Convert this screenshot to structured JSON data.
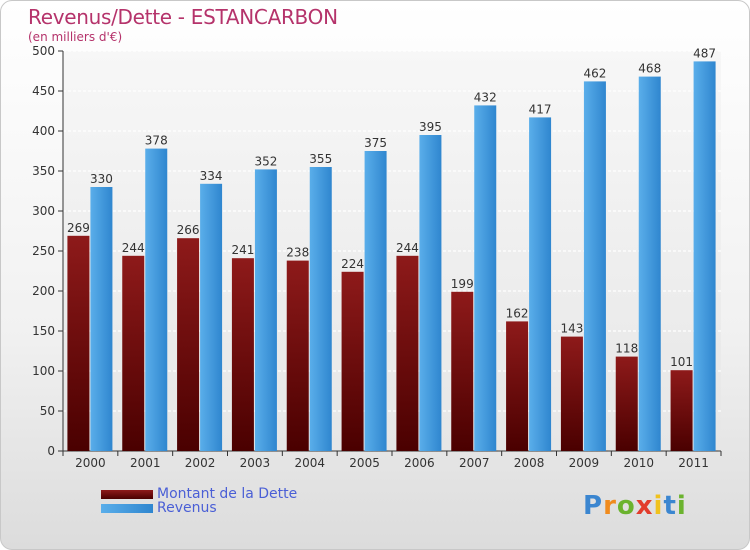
{
  "chart_data": {
    "type": "bar",
    "title": "Revenus/Dette - ESTANCARBON",
    "subtitle": "(en milliers d'€)",
    "categories": [
      "2000",
      "2001",
      "2002",
      "2003",
      "2004",
      "2005",
      "2006",
      "2007",
      "2008",
      "2009",
      "2010",
      "2011"
    ],
    "series": [
      {
        "name": "Montant de la Dette",
        "color": "#6b0a0a",
        "values": [
          269,
          244,
          266,
          241,
          238,
          224,
          244,
          199,
          162,
          143,
          118,
          101
        ]
      },
      {
        "name": "Revenus",
        "color": "#3d97db",
        "values": [
          330,
          378,
          334,
          352,
          355,
          375,
          395,
          432,
          417,
          462,
          468,
          487
        ]
      }
    ],
    "ylim": [
      0,
      500
    ],
    "yticks": [
      0,
      50,
      100,
      150,
      200,
      250,
      300,
      350,
      400,
      450,
      500
    ],
    "grid": true,
    "legend_position": "bottom-left"
  },
  "logo": {
    "letters": [
      "P",
      "r",
      "o",
      "x",
      "i",
      "t",
      "i"
    ]
  }
}
